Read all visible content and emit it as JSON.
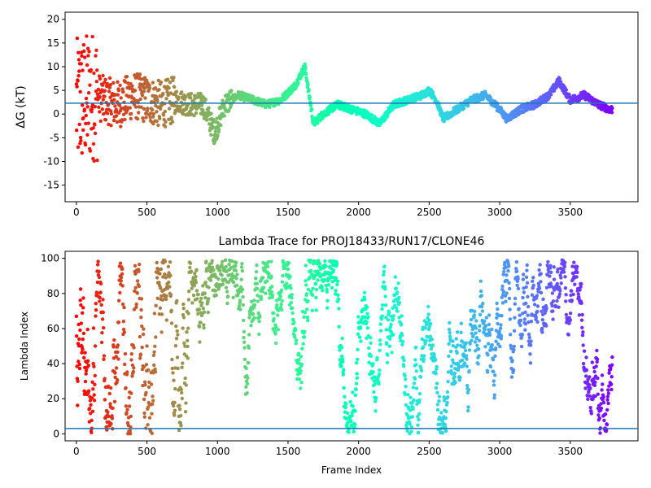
{
  "chart_data": [
    {
      "type": "scatter",
      "title": "",
      "xlabel": "",
      "ylabel": "ΔG (kT)",
      "xlim": [
        -80,
        3980
      ],
      "ylim": [
        -18.5,
        21.5
      ],
      "xticks": [
        0,
        500,
        1000,
        1500,
        2000,
        2500,
        3000,
        3500
      ],
      "yticks": [
        -15,
        -10,
        -5,
        0,
        5,
        10,
        15,
        20
      ],
      "hline": 2.3,
      "hline_color": "#1f77b4",
      "colormap": "rainbow (red at frame 0 → purple at last frame)",
      "n_frames": 3800,
      "series_shape": {
        "x_range": [
          0,
          3800
        ],
        "trend_knots_x": [
          0,
          60,
          120,
          200,
          300,
          400,
          500,
          600,
          700,
          800,
          900,
          980,
          1050,
          1150,
          1250,
          1350,
          1450,
          1550,
          1620,
          1680,
          1750,
          1850,
          1950,
          2050,
          2150,
          2250,
          2350,
          2450,
          2500,
          2550,
          2600,
          2700,
          2800,
          2900,
          3000,
          3050,
          3150,
          3250,
          3350,
          3420,
          3500,
          3600,
          3700,
          3780
        ],
        "trend_knots_y": [
          2,
          3,
          4,
          3,
          2,
          4,
          3,
          2,
          3,
          2,
          2,
          -4,
          2,
          4,
          3,
          2,
          3,
          6,
          10,
          -2,
          0,
          2,
          1,
          0,
          -2,
          2,
          3,
          4,
          5,
          3,
          -1,
          1,
          3,
          4,
          1,
          -1,
          1,
          2,
          4,
          7,
          3,
          4,
          2,
          1
        ]
      }
    },
    {
      "type": "scatter",
      "title": "Lambda Trace for PROJ18433/RUN17/CLONE46",
      "xlabel": "Frame Index",
      "ylabel": "Lambda Index",
      "xlim": [
        -80,
        3980
      ],
      "ylim": [
        -4,
        104
      ],
      "xticks": [
        0,
        500,
        1000,
        1500,
        2000,
        2500,
        3000,
        3500
      ],
      "yticks": [
        0,
        20,
        40,
        60,
        80,
        100
      ],
      "hline": 3,
      "hline_color": "#1f77b4",
      "colormap": "rainbow (red at frame 0 → purple at last frame)",
      "n_frames": 3800,
      "series_shape": {
        "x_range": [
          0,
          3800
        ],
        "y_range": [
          0,
          99
        ],
        "description": "lambda index random-walks between 0 and 99"
      }
    }
  ]
}
